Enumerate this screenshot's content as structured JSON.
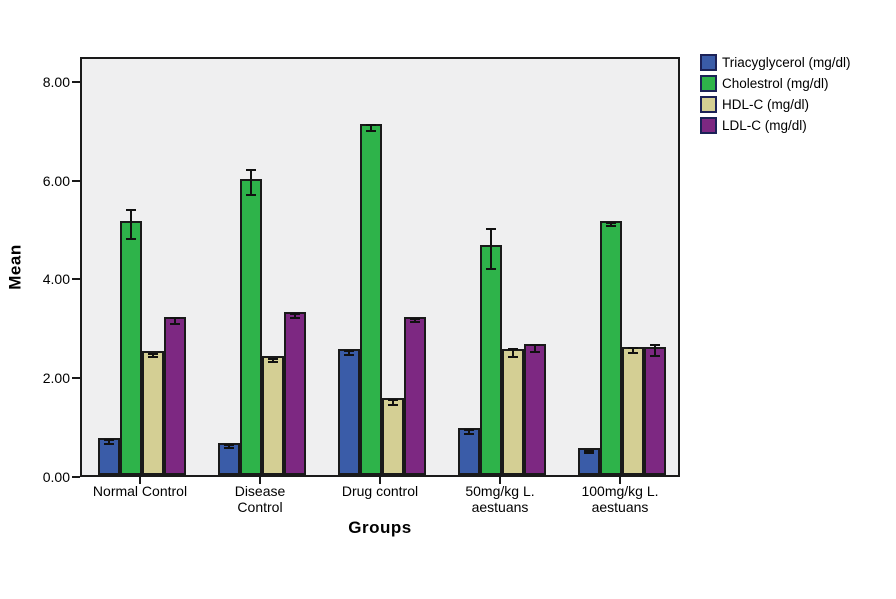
{
  "figure": {
    "background": "#ffffff",
    "plot_background": "#efeff0",
    "frame_color": "#1a1a1a",
    "error_bar_color": "#111111",
    "legend_swatch_border": "#1c2257"
  },
  "chart_data": {
    "type": "bar",
    "title": "",
    "xlabel": "Groups",
    "ylabel": "Mean",
    "ylim": [
      0,
      8.5
    ],
    "grid": false,
    "legend_position": "outside-top-right",
    "error_bars": true,
    "yticks": [
      {
        "value": 0,
        "label": "0.00"
      },
      {
        "value": 2,
        "label": "2.00"
      },
      {
        "value": 4,
        "label": "4.00"
      },
      {
        "value": 6,
        "label": "6.00"
      },
      {
        "value": 8,
        "label": "8.00"
      }
    ],
    "categories": [
      {
        "label": "Normal Control",
        "lines": [
          "Normal Control"
        ]
      },
      {
        "label": "Disease Control",
        "lines": [
          "Disease",
          "Control"
        ]
      },
      {
        "label": "Drug control",
        "lines": [
          "Drug control"
        ]
      },
      {
        "label": "50mg/kg L. aestuans",
        "lines": [
          "50mg/kg L.",
          "aestuans"
        ]
      },
      {
        "label": "100mg/kg L. aestuans",
        "lines": [
          "100mg/kg L.",
          "aestuans"
        ]
      }
    ],
    "series": [
      {
        "name": "Triacyglycerol (mg/dl)",
        "color": "#3a5ca8",
        "values": [
          0.75,
          0.65,
          2.55,
          0.95,
          0.55
        ],
        "errors": [
          0.06,
          0.05,
          0.07,
          0.06,
          0.04
        ]
      },
      {
        "name": "Cholestrol (mg/dl)",
        "color": "#2eb34a",
        "values": [
          5.15,
          6.0,
          7.1,
          4.65,
          5.15
        ],
        "errors": [
          0.32,
          0.27,
          0.08,
          0.42,
          0.05
        ]
      },
      {
        "name": "HDL-C (mg/dl)",
        "color": "#d4cf94",
        "values": [
          2.5,
          2.4,
          1.55,
          2.55,
          2.6
        ],
        "errors": [
          0.06,
          0.05,
          0.07,
          0.1,
          0.07
        ]
      },
      {
        "name": "LDL-C (mg/dl)",
        "color": "#7d2882",
        "values": [
          3.2,
          3.3,
          3.2,
          2.65,
          2.6
        ],
        "errors": [
          0.08,
          0.06,
          0.05,
          0.09,
          0.13
        ]
      }
    ]
  }
}
